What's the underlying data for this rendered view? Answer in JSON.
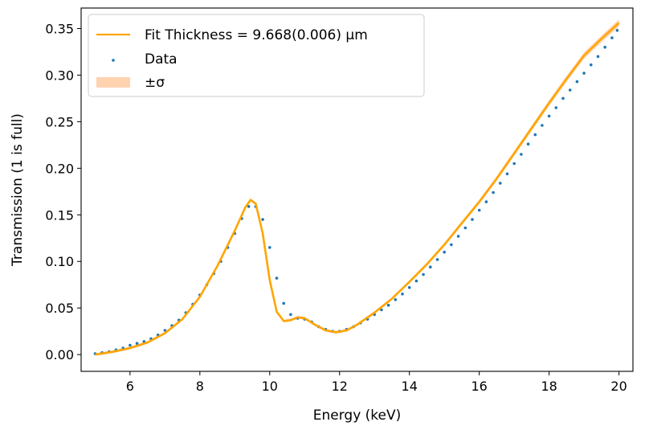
{
  "chart_data": {
    "type": "scatter",
    "title": "",
    "xlabel": "Energy (keV)",
    "ylabel": "Transmission (1 is full)",
    "xlim": [
      4.6,
      20.4
    ],
    "ylim": [
      -0.018,
      0.372
    ],
    "xticks": [
      6,
      8,
      10,
      12,
      14,
      16,
      18,
      20
    ],
    "xtick_labels": [
      "6",
      "8",
      "10",
      "12",
      "14",
      "16",
      "18",
      "20"
    ],
    "yticks": [
      0.0,
      0.05,
      0.1,
      0.15,
      0.2,
      0.25,
      0.3,
      0.35
    ],
    "ytick_labels": [
      "0.00",
      "0.05",
      "0.10",
      "0.15",
      "0.20",
      "0.25",
      "0.30",
      "0.35"
    ],
    "grid": false,
    "legend_position": "top-left",
    "legend": {
      "fit_label": "Fit Thickness = 9.668(0.006) μm",
      "data_label": "Data",
      "band_label": "±σ"
    },
    "colors": {
      "fit": "#ffa500",
      "data": "#1f77b4",
      "band": "#ffd2b0"
    },
    "series": [
      {
        "name": "Fit Thickness = 9.668(0.006) μm",
        "kind": "line",
        "x": [
          5.0,
          5.5,
          6.0,
          6.5,
          7.0,
          7.5,
          8.0,
          8.5,
          9.0,
          9.3,
          9.45,
          9.6,
          9.8,
          10.0,
          10.2,
          10.4,
          10.6,
          10.8,
          11.0,
          11.3,
          11.6,
          11.9,
          12.2,
          12.5,
          13.0,
          13.5,
          14.0,
          14.5,
          15.0,
          15.5,
          16.0,
          16.5,
          17.0,
          17.5,
          18.0,
          18.5,
          19.0,
          19.5,
          20.0
        ],
        "y": [
          0.0,
          0.003,
          0.007,
          0.013,
          0.023,
          0.038,
          0.062,
          0.095,
          0.133,
          0.158,
          0.166,
          0.162,
          0.13,
          0.08,
          0.046,
          0.036,
          0.037,
          0.04,
          0.039,
          0.032,
          0.026,
          0.024,
          0.026,
          0.032,
          0.045,
          0.06,
          0.078,
          0.097,
          0.118,
          0.141,
          0.164,
          0.189,
          0.216,
          0.243,
          0.27,
          0.296,
          0.321,
          0.339,
          0.356
        ]
      },
      {
        "name": "Data",
        "kind": "scatter",
        "x": [
          5.0,
          5.2,
          5.4,
          5.6,
          5.8,
          6.0,
          6.2,
          6.4,
          6.6,
          6.8,
          7.0,
          7.2,
          7.4,
          7.6,
          7.8,
          8.0,
          8.2,
          8.4,
          8.6,
          8.8,
          9.0,
          9.2,
          9.4,
          9.6,
          9.8,
          10.0,
          10.2,
          10.4,
          10.6,
          10.8,
          11.0,
          11.2,
          11.4,
          11.6,
          11.8,
          12.0,
          12.2,
          12.4,
          12.6,
          12.8,
          13.0,
          13.2,
          13.4,
          13.6,
          13.8,
          14.0,
          14.2,
          14.4,
          14.6,
          14.8,
          15.0,
          15.2,
          15.4,
          15.6,
          15.8,
          16.0,
          16.2,
          16.4,
          16.6,
          16.8,
          17.0,
          17.2,
          17.4,
          17.6,
          17.8,
          18.0,
          18.2,
          18.4,
          18.6,
          18.8,
          19.0,
          19.2,
          19.4,
          19.6,
          19.8,
          19.95
        ],
        "y": [
          0.001,
          0.002,
          0.003,
          0.005,
          0.007,
          0.01,
          0.012,
          0.014,
          0.017,
          0.021,
          0.026,
          0.031,
          0.037,
          0.045,
          0.054,
          0.064,
          0.075,
          0.087,
          0.1,
          0.115,
          0.13,
          0.146,
          0.159,
          0.159,
          0.145,
          0.115,
          0.082,
          0.055,
          0.043,
          0.039,
          0.038,
          0.035,
          0.03,
          0.027,
          0.025,
          0.025,
          0.027,
          0.03,
          0.034,
          0.038,
          0.043,
          0.048,
          0.053,
          0.059,
          0.065,
          0.072,
          0.079,
          0.086,
          0.094,
          0.102,
          0.11,
          0.118,
          0.127,
          0.136,
          0.145,
          0.155,
          0.164,
          0.174,
          0.184,
          0.194,
          0.205,
          0.215,
          0.226,
          0.236,
          0.246,
          0.256,
          0.265,
          0.275,
          0.284,
          0.293,
          0.302,
          0.311,
          0.32,
          0.33,
          0.34,
          0.348
        ]
      }
    ]
  }
}
